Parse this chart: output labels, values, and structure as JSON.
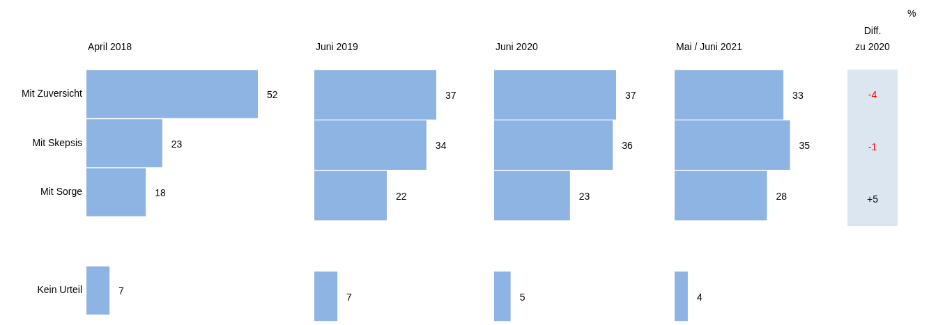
{
  "chart_data": [
    {
      "type": "bar",
      "orientation": "horizontal",
      "title": "April 2018",
      "categories": [
        "Mit Zuversicht",
        "Mit Skepsis",
        "Mit Sorge",
        null,
        "Kein Urteil"
      ],
      "values": [
        52,
        23,
        18,
        null,
        7
      ],
      "color": "#8eb4e3",
      "data_labels": true,
      "tick_labels": "y"
    },
    {
      "type": "bar",
      "orientation": "horizontal",
      "title": "Juni 2019",
      "categories": [
        null,
        null,
        null,
        null,
        null
      ],
      "values": [
        37,
        34,
        22,
        null,
        7
      ],
      "color": "#8eb4e3",
      "data_labels": true,
      "tick_labels": false
    },
    {
      "type": "bar",
      "orientation": "horizontal",
      "title": "Juni 2020",
      "categories": [
        null,
        null,
        null,
        null,
        null
      ],
      "values": [
        37,
        36,
        23,
        null,
        5
      ],
      "color": "#8eb4e3",
      "data_labels": true,
      "tick_labels": false
    },
    {
      "type": "bar",
      "orientation": "horizontal",
      "title": "Mai / Juni 2021",
      "categories": [
        null,
        null,
        null,
        null,
        null
      ],
      "values": [
        33,
        35,
        28,
        null,
        4
      ],
      "color": "#8eb4e3",
      "data_labels": true,
      "tick_labels": false
    },
    {
      "type": "other",
      "title": "Diff.\nzu 2020",
      "values": [
        -4,
        -1,
        5
      ],
      "value_labels": [
        "-4",
        "-1",
        "+5"
      ],
      "colors": [
        "#ff0000",
        "#ff0000",
        "#000000"
      ],
      "annotations": [
        "%"
      ]
    }
  ]
}
